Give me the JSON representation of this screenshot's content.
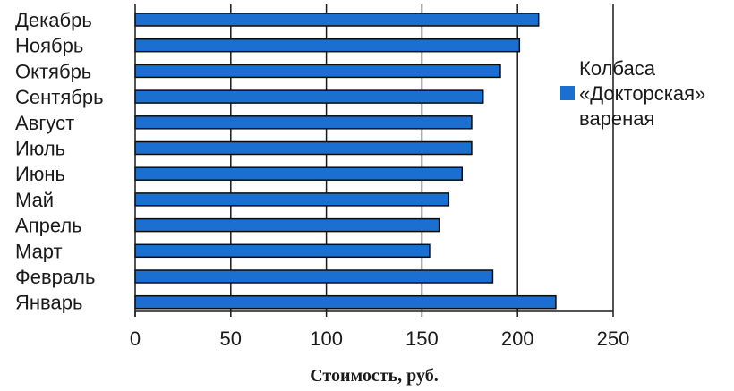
{
  "chart_data": {
    "type": "bar",
    "orientation": "horizontal",
    "categories": [
      "Декабрь",
      "Ноябрь",
      "Октябрь",
      "Сентябрь",
      "Август",
      "Июль",
      "Июнь",
      "Май",
      "Апрель",
      "Март",
      "Февраль",
      "Январь"
    ],
    "series": [
      {
        "name_lines": [
          "Колбаса",
          "«Докторская»",
          "вареная"
        ],
        "values": [
          211,
          201,
          191,
          182,
          176,
          176,
          171,
          164,
          159,
          154,
          187,
          220
        ],
        "color": "#1a6fd0"
      }
    ],
    "xlabel": "Стоимость, руб.",
    "xlim": [
      0,
      250
    ],
    "xticks": [
      0,
      50,
      100,
      150,
      200,
      250
    ],
    "grid": "vertical",
    "legend_position": "right"
  }
}
